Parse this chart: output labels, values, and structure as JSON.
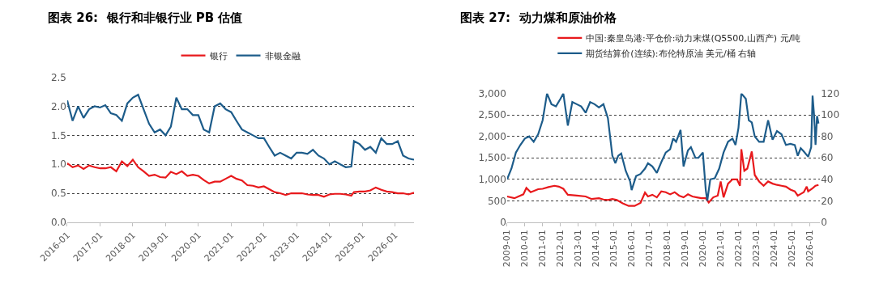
{
  "chart_data": [
    {
      "type": "line",
      "title": "图表 26:  银行和非银行业 PB 估值",
      "x": [
        "2016-01",
        "2016-03",
        "2016-05",
        "2016-07",
        "2016-09",
        "2016-11",
        "2017-01",
        "2017-03",
        "2017-05",
        "2017-07",
        "2017-09",
        "2017-11",
        "2018-01",
        "2018-03",
        "2018-05",
        "2018-07",
        "2018-09",
        "2018-11",
        "2019-01",
        "2019-03",
        "2019-05",
        "2019-07",
        "2019-09",
        "2019-11",
        "2020-01",
        "2020-03",
        "2020-05",
        "2020-07",
        "2020-09",
        "2020-11",
        "2021-01",
        "2021-03",
        "2021-05",
        "2021-07",
        "2021-09",
        "2021-11",
        "2022-01",
        "2022-03",
        "2022-05",
        "2022-07",
        "2022-09",
        "2022-11",
        "2023-01",
        "2023-03",
        "2023-05",
        "2023-07",
        "2023-09",
        "2023-11",
        "2024-01",
        "2024-03",
        "2024-05",
        "2024-07",
        "2024-09",
        "2024-10",
        "2024-12",
        "2025-02",
        "2025-04",
        "2025-06",
        "2025-08",
        "2025-10",
        "2025-12",
        "2026-02",
        "2026-04",
        "2026-06",
        "2026-08"
      ],
      "series": [
        {
          "name": "银行",
          "color": "#e8191c",
          "values": [
            1.02,
            0.95,
            0.98,
            0.92,
            0.98,
            0.95,
            0.93,
            0.93,
            0.95,
            0.88,
            1.05,
            0.97,
            1.08,
            0.95,
            0.88,
            0.8,
            0.82,
            0.78,
            0.77,
            0.87,
            0.83,
            0.88,
            0.8,
            0.82,
            0.8,
            0.73,
            0.67,
            0.7,
            0.7,
            0.75,
            0.8,
            0.75,
            0.72,
            0.64,
            0.63,
            0.6,
            0.62,
            0.57,
            0.52,
            0.5,
            0.47,
            0.5,
            0.5,
            0.5,
            0.48,
            0.47,
            0.47,
            0.44,
            0.48,
            0.49,
            0.49,
            0.48,
            0.46,
            0.52,
            0.53,
            0.53,
            0.55,
            0.6,
            0.56,
            0.53,
            0.52,
            0.5,
            0.5,
            0.48,
            0.51
          ]
        },
        {
          "name": "非银金融",
          "color": "#1d5c8a",
          "values": [
            2.1,
            1.75,
            2.0,
            1.8,
            1.95,
            2.0,
            1.98,
            2.02,
            1.88,
            1.85,
            1.75,
            2.05,
            2.15,
            2.2,
            1.95,
            1.7,
            1.55,
            1.6,
            1.5,
            1.65,
            2.15,
            1.95,
            1.95,
            1.85,
            1.85,
            1.6,
            1.55,
            2.0,
            2.05,
            1.95,
            1.9,
            1.75,
            1.6,
            1.55,
            1.5,
            1.45,
            1.45,
            1.3,
            1.15,
            1.2,
            1.15,
            1.1,
            1.2,
            1.2,
            1.18,
            1.25,
            1.15,
            1.1,
            1.0,
            1.05,
            1.0,
            0.95,
            0.96,
            1.4,
            1.35,
            1.25,
            1.3,
            1.2,
            1.45,
            1.35,
            1.35,
            1.4,
            1.15,
            1.1,
            1.08
          ]
        }
      ],
      "xlim": [
        "2016-01",
        "2026-08"
      ],
      "xticks": [
        "2016-01",
        "2017-01",
        "2018-01",
        "2019-01",
        "2020-01",
        "2021-01",
        "2022-01",
        "2023-01",
        "2024-01",
        "2025-01",
        "2026-01"
      ],
      "ylim": [
        0,
        2.5
      ],
      "yticks": [
        {
          "value": 0,
          "label": "0.0"
        },
        {
          "value": 0.5,
          "label": "0.5"
        },
        {
          "value": 1,
          "label": "1.0"
        },
        {
          "value": 1.5,
          "label": "1.5"
        },
        {
          "value": 2,
          "label": "2.0"
        },
        {
          "value": 2.5,
          "label": "2.5"
        }
      ],
      "grid": "y",
      "legend": "top",
      "marker": "none",
      "line_style": "solid"
    },
    {
      "type": "line",
      "title": "图表 27:  动力煤和原油价格",
      "series": [
        {
          "name": "中国:秦皇岛港:平仓价:动力末煤(Q5500,山西产) 元/吨",
          "color": "#e8191c",
          "x": [
            "2009-01",
            "2009-06",
            "2009-12",
            "2010-02",
            "2010-05",
            "2010-10",
            "2011-01",
            "2011-05",
            "2011-09",
            "2011-12",
            "2012-03",
            "2012-06",
            "2012-09",
            "2012-12",
            "2013-06",
            "2013-10",
            "2014-03",
            "2014-06",
            "2014-09",
            "2014-12",
            "2015-03",
            "2015-07",
            "2015-11",
            "2016-03",
            "2016-07",
            "2016-10",
            "2016-12",
            "2017-03",
            "2017-06",
            "2017-09",
            "2017-12",
            "2018-03",
            "2018-06",
            "2018-09",
            "2018-12",
            "2019-03",
            "2019-06",
            "2019-09",
            "2019-12",
            "2020-03",
            "2020-05",
            "2020-08",
            "2020-11",
            "2021-01",
            "2021-03",
            "2021-06",
            "2021-09",
            "2021-12",
            "2022-02",
            "2022-03",
            "2022-05",
            "2022-07",
            "2022-10",
            "2022-12",
            "2023-03",
            "2023-06",
            "2023-09",
            "2023-12",
            "2024-03",
            "2024-06",
            "2024-09",
            "2024-12",
            "2025-03",
            "2025-05",
            "2025-07",
            "2025-09",
            "2025-11",
            "2025-12",
            "2026-03",
            "2026-05",
            "2026-07"
          ],
          "values": [
            600,
            560,
            650,
            800,
            700,
            770,
            780,
            820,
            850,
            830,
            780,
            640,
            630,
            620,
            600,
            540,
            560,
            530,
            520,
            540,
            520,
            440,
            380,
            380,
            450,
            690,
            600,
            640,
            580,
            720,
            700,
            650,
            700,
            620,
            580,
            650,
            600,
            580,
            560,
            560,
            460,
            580,
            620,
            950,
            580,
            900,
            1000,
            1000,
            850,
            1700,
            1200,
            1250,
            1650,
            1100,
            950,
            850,
            950,
            900,
            870,
            850,
            830,
            760,
            720,
            620,
            660,
            700,
            830,
            720,
            790,
            850,
            870
          ]
        },
        {
          "name": "期货结算价(连续):布伦特原油 美元/桶 右轴",
          "color": "#1d5c8a",
          "axis": "y2",
          "x": [
            "2009-01",
            "2009-04",
            "2009-07",
            "2009-10",
            "2010-01",
            "2010-04",
            "2010-07",
            "2010-10",
            "2011-01",
            "2011-04",
            "2011-07",
            "2011-10",
            "2012-01",
            "2012-03",
            "2012-06",
            "2012-09",
            "2012-12",
            "2013-03",
            "2013-06",
            "2013-09",
            "2013-12",
            "2014-03",
            "2014-06",
            "2014-09",
            "2014-12",
            "2015-02",
            "2015-04",
            "2015-06",
            "2015-09",
            "2015-12",
            "2016-01",
            "2016-04",
            "2016-07",
            "2016-10",
            "2016-12",
            "2017-03",
            "2017-06",
            "2017-09",
            "2017-12",
            "2018-03",
            "2018-05",
            "2018-07",
            "2018-10",
            "2018-12",
            "2019-03",
            "2019-05",
            "2019-08",
            "2019-10",
            "2020-01",
            "2020-03",
            "2020-04",
            "2020-06",
            "2020-09",
            "2020-12",
            "2021-03",
            "2021-06",
            "2021-09",
            "2021-11",
            "2022-01",
            "2022-03",
            "2022-06",
            "2022-08",
            "2022-10",
            "2022-12",
            "2023-03",
            "2023-06",
            "2023-09",
            "2023-12",
            "2024-03",
            "2024-06",
            "2024-09",
            "2024-12",
            "2025-03",
            "2025-05",
            "2025-07",
            "2025-09",
            "2025-12",
            "2026-02",
            "2026-03",
            "2026-04",
            "2026-05",
            "2026-06",
            "2026-07"
          ],
          "values": [
            40,
            50,
            65,
            72,
            78,
            80,
            75,
            82,
            95,
            120,
            110,
            108,
            115,
            120,
            90,
            112,
            110,
            108,
            102,
            112,
            110,
            107,
            110,
            97,
            62,
            55,
            62,
            64,
            48,
            38,
            30,
            43,
            45,
            50,
            55,
            52,
            46,
            56,
            65,
            68,
            78,
            75,
            86,
            52,
            67,
            70,
            60,
            60,
            65,
            30,
            20,
            40,
            41,
            50,
            65,
            75,
            78,
            72,
            88,
            120,
            115,
            95,
            93,
            80,
            75,
            75,
            95,
            77,
            85,
            82,
            72,
            73,
            72,
            62,
            69,
            66,
            61,
            70,
            118,
            100,
            72,
            99,
            92
          ]
        }
      ],
      "xlim": [
        "2009-01",
        "2026-08"
      ],
      "xticks": [
        "2009-01",
        "2010-01",
        "2011-01",
        "2012-01",
        "2013-01",
        "2014-01",
        "2015-01",
        "2016-01",
        "2017-01",
        "2018-01",
        "2019-01",
        "2020-01",
        "2021-01",
        "2022-01",
        "2023-01",
        "2024-01",
        "2025-01",
        "2026-01"
      ],
      "ylim": [
        0,
        3000
      ],
      "yticks": [
        0,
        500,
        {
          "value": 1000,
          "label": "1,000"
        },
        {
          "value": 1500,
          "label": "1,500"
        },
        {
          "value": 2000,
          "label": "2,000"
        },
        {
          "value": 2500,
          "label": "2,500"
        },
        {
          "value": 3000,
          "label": "3,000"
        }
      ],
      "y2lim": [
        0,
        120
      ],
      "y2ticks": [
        0,
        20,
        40,
        60,
        80,
        100,
        120
      ],
      "grid": "y",
      "legend": "top",
      "marker": "none",
      "line_style": "solid"
    }
  ]
}
